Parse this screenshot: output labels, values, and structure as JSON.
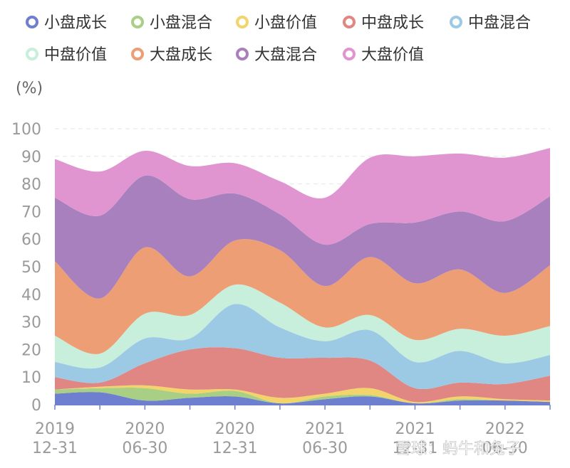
{
  "chart_data": {
    "type": "area",
    "stacked": true,
    "unit_label": "(%)",
    "x": [
      "2019-12-31",
      "2020-03-31",
      "2020-06-30",
      "2020-09-30",
      "2020-12-31",
      "2021-03-31",
      "2021-06-30",
      "2021-09-30",
      "2021-12-31",
      "2022-03-31",
      "2022-06-30",
      "2022-09-30"
    ],
    "x_tick_labels": [
      {
        "index": 0,
        "line1": "2019",
        "line2": "12-31"
      },
      {
        "index": 2,
        "line1": "2020",
        "line2": "06-30"
      },
      {
        "index": 4,
        "line1": "2020",
        "line2": "12-31"
      },
      {
        "index": 6,
        "line1": "2021",
        "line2": "06-30"
      },
      {
        "index": 8,
        "line1": "2021",
        "line2": "12-31"
      },
      {
        "index": 10,
        "line1": "2022",
        "line2": "06-30"
      }
    ],
    "ylim": [
      0,
      100
    ],
    "y_ticks": [
      0,
      10,
      20,
      30,
      40,
      50,
      60,
      70,
      80,
      90,
      100
    ],
    "grid": "horizontal dashed",
    "legend_position": "top",
    "series": [
      {
        "name": "小盘成长",
        "color": "#6f7fcf",
        "values": [
          4.0,
          4.5,
          1.5,
          2.5,
          3.0,
          0.5,
          2.0,
          3.0,
          0.5,
          1.5,
          1.5,
          1.0
        ]
      },
      {
        "name": "小盘混合",
        "color": "#a9cf85",
        "values": [
          1.5,
          1.5,
          4.5,
          1.5,
          2.0,
          0.0,
          1.0,
          0.5,
          0.0,
          0.5,
          0.0,
          0.0
        ]
      },
      {
        "name": "小盘价值",
        "color": "#f3d46a",
        "values": [
          0.0,
          0.5,
          1.0,
          1.5,
          0.5,
          2.0,
          1.0,
          2.5,
          0.5,
          1.0,
          0.5,
          0.5
        ]
      },
      {
        "name": "中盘成长",
        "color": "#e08683",
        "values": [
          4.5,
          1.5,
          8.0,
          14.5,
          15.0,
          14.5,
          13.0,
          10.0,
          5.0,
          5.0,
          5.5,
          9.0
        ]
      },
      {
        "name": "中盘混合",
        "color": "#9ccae4",
        "values": [
          5.5,
          5.5,
          9.0,
          4.0,
          16.0,
          11.0,
          6.0,
          11.0,
          9.5,
          11.5,
          7.5,
          7.5
        ]
      },
      {
        "name": "中盘价值",
        "color": "#c8eedc",
        "values": [
          9.5,
          5.0,
          9.0,
          8.5,
          7.0,
          9.0,
          5.0,
          5.5,
          8.0,
          8.0,
          10.0,
          10.5
        ]
      },
      {
        "name": "大盘成长",
        "color": "#ee9e74",
        "values": [
          27.0,
          20.0,
          24.0,
          14.0,
          16.0,
          19.0,
          15.0,
          21.0,
          20.5,
          21.5,
          15.5,
          22.0
        ]
      },
      {
        "name": "大盘混合",
        "color": "#a780bd",
        "values": [
          23.0,
          30.0,
          26.0,
          28.0,
          17.0,
          13.0,
          15.0,
          12.0,
          22.0,
          21.0,
          26.0,
          25.0
        ]
      },
      {
        "name": "大盘价值",
        "color": "#e095d0",
        "values": [
          14.0,
          16.0,
          9.0,
          12.0,
          11.0,
          12.0,
          17.0,
          24.0,
          24.0,
          21.0,
          23.0,
          17.5
        ]
      }
    ]
  },
  "watermark": "雪球：蚂牛和兔子"
}
